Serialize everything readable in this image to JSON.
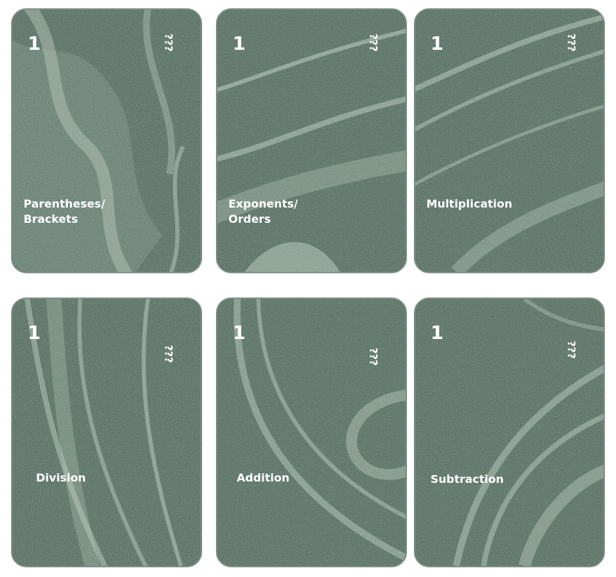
{
  "cards": [
    {
      "number": "1",
      "unknown": "???",
      "label": "Parentheses/\nBrackets",
      "pattern": "a"
    },
    {
      "number": "1",
      "unknown": "???",
      "label": "Exponents/\nOrders",
      "pattern": "b"
    },
    {
      "number": "1",
      "unknown": "???",
      "label": "Multiplication",
      "pattern": "c"
    },
    {
      "number": "1",
      "unknown": "???",
      "label": "Division",
      "pattern": "d"
    },
    {
      "number": "1",
      "unknown": "???",
      "label": "Addition",
      "pattern": "e"
    },
    {
      "number": "1",
      "unknown": "???",
      "label": "Subtraction",
      "pattern": "f"
    }
  ],
  "colors": {
    "card_base": "#5d7468",
    "card_light": "#b7c9bb",
    "card_border": "#7f8f86",
    "text": "#ffffff"
  }
}
